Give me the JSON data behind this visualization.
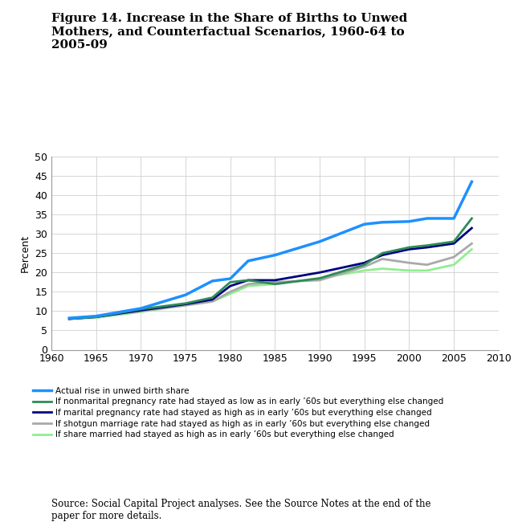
{
  "title": "Figure 14. Increase in the Share of Births to Unwed\nMothers, and Counterfactual Scenarios, 1960-64 to\n2005-09",
  "ylabel": "Percent",
  "source_text": "Source: Social Capital Project analyses. See the Source Notes at the end of the\npaper for more details.",
  "ylim": [
    0,
    50
  ],
  "xlim": [
    1960,
    2010
  ],
  "yticks": [
    0,
    5,
    10,
    15,
    20,
    25,
    30,
    35,
    40,
    45,
    50
  ],
  "xticks": [
    1960,
    1965,
    1970,
    1975,
    1980,
    1985,
    1990,
    1995,
    2000,
    2005,
    2010
  ],
  "years": [
    1962,
    1965,
    1970,
    1975,
    1978,
    1980,
    1982,
    1985,
    1990,
    1995,
    1997,
    2000,
    2002,
    2005,
    2007
  ],
  "actual": [
    8.2,
    8.7,
    10.7,
    14.2,
    17.8,
    18.4,
    23.0,
    24.5,
    28.0,
    32.5,
    33.0,
    33.2,
    34.0,
    34.0,
    43.5
  ],
  "nonmarital_preg": [
    8.0,
    8.5,
    10.5,
    12.0,
    13.5,
    17.5,
    18.0,
    17.0,
    18.5,
    22.0,
    25.0,
    26.5,
    27.0,
    28.0,
    34.0
  ],
  "marital_preg": [
    8.0,
    8.5,
    10.2,
    11.8,
    13.0,
    16.5,
    18.0,
    18.0,
    20.0,
    22.5,
    24.5,
    26.0,
    26.5,
    27.5,
    31.5
  ],
  "shotgun_marriage": [
    8.0,
    8.5,
    10.0,
    11.5,
    12.5,
    15.0,
    17.0,
    17.5,
    18.0,
    21.5,
    23.5,
    22.5,
    22.0,
    24.0,
    27.5
  ],
  "share_married": [
    8.0,
    8.3,
    9.8,
    11.5,
    12.5,
    14.5,
    16.5,
    17.0,
    18.5,
    20.5,
    21.0,
    20.5,
    20.5,
    22.0,
    26.0
  ],
  "color_actual": "#1E90FF",
  "color_nonmarital_preg": "#2E8B57",
  "color_marital_preg": "#000080",
  "color_shotgun_marriage": "#A9A9A9",
  "color_share_married": "#90EE90",
  "lw_actual": 2.5,
  "lw_others": 2.0,
  "legend_labels": [
    "Actual rise in unwed birth share",
    "If nonmarital pregnancy rate had stayed as low as in early ’60s but everything else changed",
    "If marital pregnancy rate had stayed as high as in early ’60s but everything else changed",
    "If shotgun marriage rate had stayed as high as in early ’60s but everything else changed",
    "If share married had stayed as high as in early ’60s but everything else changed"
  ],
  "bg_color": "#FFFFFF",
  "grid_color": "#CCCCCC",
  "title_fontsize": 11,
  "axis_fontsize": 9,
  "legend_fontsize": 7.5,
  "source_fontsize": 8.5
}
